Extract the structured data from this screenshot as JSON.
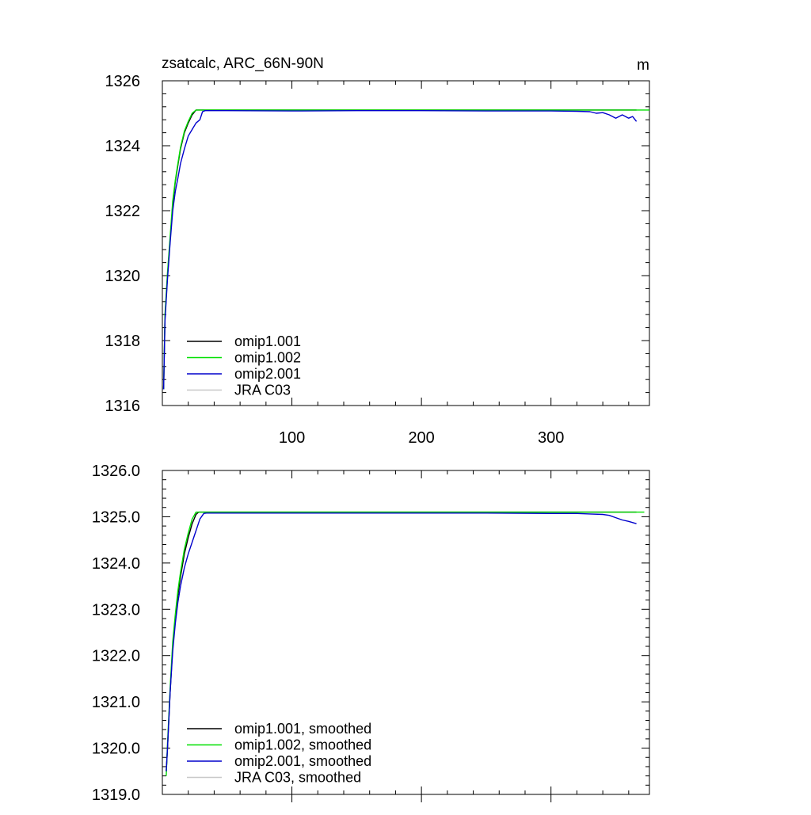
{
  "chart_data": [
    {
      "type": "line",
      "title": "zsatcalc, ARC_66N-90N",
      "units": "m",
      "xlim": [
        0,
        376
      ],
      "ylim": [
        1316,
        1326
      ],
      "xticks": [
        100,
        200,
        300
      ],
      "xtick_labels": [
        "100",
        "200",
        "300"
      ],
      "yticks": [
        1316,
        1318,
        1320,
        1322,
        1324,
        1326
      ],
      "ytick_labels": [
        "1316",
        "1318",
        "1320",
        "1322",
        "1324",
        "1326"
      ],
      "grid": false,
      "legend_placement": "bottom-left",
      "series": [
        {
          "name": "omip1.001",
          "color": "#000000",
          "x": [
            1,
            2,
            4,
            6,
            8,
            10,
            12,
            14,
            17,
            20,
            23,
            26,
            28,
            30,
            35,
            50,
            100,
            150,
            200,
            250,
            300,
            340,
            366
          ],
          "y": [
            1316.5,
            1318.7,
            1320.0,
            1321.1,
            1322.2,
            1322.9,
            1323.4,
            1323.9,
            1324.4,
            1324.7,
            1324.95,
            1325.1,
            1325.1,
            1325.1,
            1325.1,
            1325.1,
            1325.1,
            1325.1,
            1325.1,
            1325.1,
            1325.1,
            1325.1,
            1325.1
          ]
        },
        {
          "name": "omip1.002",
          "color": "#00e000",
          "x": [
            1,
            2,
            4,
            6,
            8,
            10,
            12,
            14,
            17,
            20,
            23,
            26,
            28,
            30,
            35,
            50,
            100,
            150,
            200,
            250,
            300,
            340,
            376
          ],
          "y": [
            1316.5,
            1318.8,
            1320.1,
            1321.2,
            1322.3,
            1322.95,
            1323.45,
            1323.95,
            1324.45,
            1324.75,
            1325.0,
            1325.1,
            1325.1,
            1325.1,
            1325.1,
            1325.1,
            1325.1,
            1325.1,
            1325.1,
            1325.1,
            1325.1,
            1325.1,
            1325.1
          ]
        },
        {
          "name": "omip2.001",
          "color": "#0000cc",
          "x": [
            1,
            2,
            4,
            6,
            8,
            10,
            12,
            14,
            17,
            20,
            23,
            26,
            29,
            31,
            33,
            50,
            100,
            150,
            200,
            250,
            300,
            320,
            330,
            335,
            340,
            345,
            350,
            355,
            360,
            363,
            366
          ],
          "y": [
            1316.5,
            1318.6,
            1319.9,
            1321.0,
            1322.0,
            1322.6,
            1323.0,
            1323.45,
            1323.9,
            1324.3,
            1324.5,
            1324.7,
            1324.8,
            1325.05,
            1325.08,
            1325.08,
            1325.07,
            1325.08,
            1325.08,
            1325.07,
            1325.07,
            1325.06,
            1325.05,
            1325.0,
            1325.02,
            1324.95,
            1324.85,
            1324.95,
            1324.85,
            1324.9,
            1324.75
          ]
        },
        {
          "name": "JRA C03",
          "color": "#c8c8c8",
          "x": [],
          "y": []
        }
      ]
    },
    {
      "type": "line",
      "xlim": [
        0,
        376
      ],
      "ylim": [
        1319.0,
        1326.0
      ],
      "xticks": [
        100,
        200,
        300
      ],
      "yticks": [
        1319.0,
        1320.0,
        1321.0,
        1322.0,
        1323.0,
        1324.0,
        1325.0,
        1326.0
      ],
      "ytick_labels": [
        "1319.0",
        "1320.0",
        "1321.0",
        "1322.0",
        "1323.0",
        "1324.0",
        "1325.0",
        "1326.0"
      ],
      "grid": false,
      "legend_placement": "bottom-left",
      "series": [
        {
          "name": "omip1.001, smoothed",
          "color": "#000000",
          "x": [
            3,
            4,
            6,
            8,
            10,
            12,
            14,
            17,
            20,
            23,
            26,
            28,
            30,
            35,
            50,
            100,
            150,
            200,
            250,
            300,
            340,
            366
          ],
          "y": [
            1319.5,
            1320.0,
            1321.2,
            1322.2,
            1322.8,
            1323.3,
            1323.7,
            1324.2,
            1324.55,
            1324.85,
            1325.05,
            1325.1,
            1325.1,
            1325.1,
            1325.1,
            1325.1,
            1325.1,
            1325.1,
            1325.1,
            1325.1,
            1325.1,
            1325.1
          ]
        },
        {
          "name": "omip1.002, smoothed",
          "color": "#00e000",
          "x": [
            3,
            4,
            6,
            8,
            10,
            12,
            14,
            17,
            20,
            23,
            26,
            28,
            30,
            35,
            50,
            100,
            150,
            200,
            250,
            300,
            340,
            372
          ],
          "y": [
            1319.4,
            1320.1,
            1321.3,
            1322.3,
            1322.9,
            1323.4,
            1323.8,
            1324.3,
            1324.65,
            1324.95,
            1325.1,
            1325.1,
            1325.1,
            1325.1,
            1325.1,
            1325.1,
            1325.1,
            1325.1,
            1325.1,
            1325.1,
            1325.1,
            1325.1
          ]
        },
        {
          "name": "omip2.001, smoothed",
          "color": "#0000cc",
          "x": [
            3,
            4,
            6,
            8,
            10,
            12,
            14,
            17,
            20,
            23,
            26,
            29,
            32,
            34,
            50,
            100,
            150,
            200,
            250,
            300,
            320,
            330,
            340,
            345,
            350,
            355,
            360,
            366
          ],
          "y": [
            1319.5,
            1320.0,
            1321.2,
            1322.1,
            1322.7,
            1323.15,
            1323.5,
            1323.9,
            1324.2,
            1324.45,
            1324.7,
            1324.95,
            1325.07,
            1325.08,
            1325.08,
            1325.08,
            1325.08,
            1325.08,
            1325.08,
            1325.07,
            1325.07,
            1325.06,
            1325.05,
            1325.03,
            1324.98,
            1324.93,
            1324.9,
            1324.85
          ]
        },
        {
          "name": "JRA C03, smoothed",
          "color": "#c8c8c8",
          "x": [],
          "y": []
        }
      ]
    }
  ]
}
